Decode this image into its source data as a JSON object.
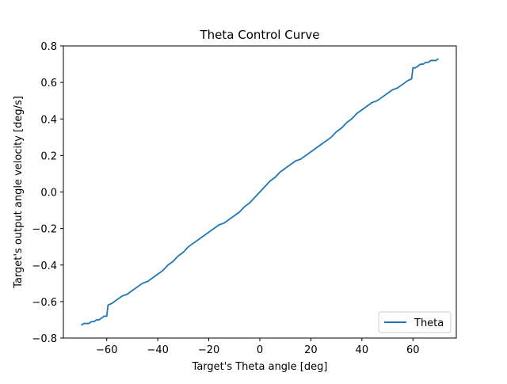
{
  "chart_data": {
    "type": "line",
    "title": "Theta Control Curve",
    "xlabel": "Target's Theta angle [deg]",
    "ylabel": "Target's output angle velocity [deg/s]",
    "xlim": [
      -77,
      77
    ],
    "ylim": [
      -0.8,
      0.8
    ],
    "xticks": [
      -60,
      -40,
      -20,
      0,
      20,
      40,
      60
    ],
    "yticks": [
      -0.8,
      -0.6,
      -0.4,
      -0.2,
      0.0,
      0.2,
      0.4,
      0.6,
      0.8
    ],
    "xtick_labels": [
      "−60",
      "−40",
      "−20",
      "0",
      "20",
      "40",
      "60"
    ],
    "ytick_labels": [
      "−0.8",
      "−0.6",
      "−0.4",
      "−0.2",
      "0.0",
      "0.2",
      "0.4",
      "0.6",
      "0.8"
    ],
    "grid": false,
    "legend_position": "lower-right",
    "series": [
      {
        "name": "Theta",
        "color": "#1f77b4",
        "x": [
          -70,
          -69,
          -68,
          -67,
          -66,
          -65,
          -64,
          -63,
          -62,
          -61,
          -60,
          -59.5,
          -58,
          -56,
          -54,
          -52,
          -50,
          -48,
          -46,
          -44,
          -42,
          -40,
          -38,
          -36,
          -34,
          -32,
          -30,
          -28,
          -26,
          -24,
          -22,
          -20,
          -18,
          -16,
          -14,
          -12,
          -10,
          -8,
          -6,
          -4,
          -2,
          0,
          2,
          4,
          6,
          8,
          10,
          12,
          14,
          16,
          18,
          20,
          22,
          24,
          26,
          28,
          30,
          32,
          34,
          36,
          38,
          40,
          42,
          44,
          46,
          48,
          50,
          52,
          54,
          56,
          58,
          59.5,
          60,
          61,
          62,
          63,
          64,
          65,
          66,
          67,
          68,
          69,
          70
        ],
        "y": [
          -0.73,
          -0.72,
          -0.72,
          -0.72,
          -0.71,
          -0.71,
          -0.7,
          -0.7,
          -0.69,
          -0.68,
          -0.68,
          -0.62,
          -0.61,
          -0.59,
          -0.57,
          -0.56,
          -0.54,
          -0.52,
          -0.5,
          -0.49,
          -0.47,
          -0.45,
          -0.43,
          -0.4,
          -0.38,
          -0.35,
          -0.33,
          -0.3,
          -0.28,
          -0.26,
          -0.24,
          -0.22,
          -0.2,
          -0.18,
          -0.17,
          -0.15,
          -0.13,
          -0.11,
          -0.08,
          -0.06,
          -0.03,
          0.0,
          0.03,
          0.06,
          0.08,
          0.11,
          0.13,
          0.15,
          0.17,
          0.18,
          0.2,
          0.22,
          0.24,
          0.26,
          0.28,
          0.3,
          0.33,
          0.35,
          0.38,
          0.4,
          0.43,
          0.45,
          0.47,
          0.49,
          0.5,
          0.52,
          0.54,
          0.56,
          0.57,
          0.59,
          0.61,
          0.62,
          0.68,
          0.68,
          0.69,
          0.7,
          0.7,
          0.71,
          0.71,
          0.72,
          0.72,
          0.72,
          0.73
        ]
      }
    ]
  }
}
